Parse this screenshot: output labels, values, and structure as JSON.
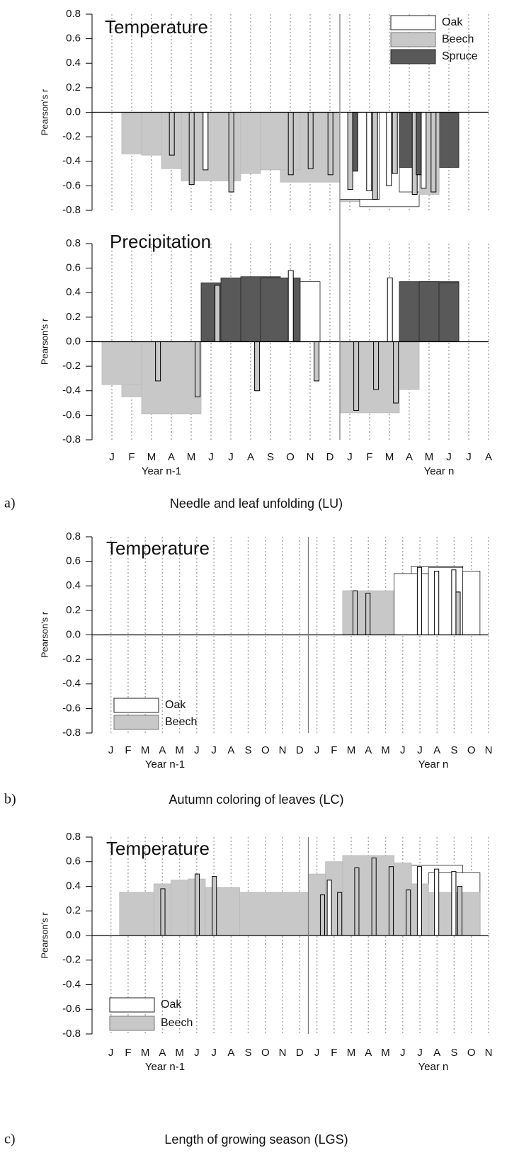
{
  "chart_data": [
    {
      "type": "bar",
      "title": "Temperature",
      "ylabel": "Pearson's r",
      "xlim": [
        0,
        20
      ],
      "ylim": [
        -0.8,
        0.8
      ],
      "yticks": [
        0.8,
        0.6,
        0.4,
        0.2,
        {
          "value": 0,
          "label": "0.0"
        },
        -0.2,
        -0.4,
        -0.6,
        -0.8
      ],
      "legend": "upper right",
      "series": [
        {
          "name": "Oak",
          "color": "#ffffff",
          "x_start": [
            5.6,
            12.5,
            13.5,
            15.5,
            13.85,
            14.85,
            16.6
          ],
          "x_end": [
            5.85,
            14.5,
            16.5,
            17.5,
            14.1,
            15.1,
            16.85
          ],
          "values": [
            -0.47,
            -0.71,
            -0.77,
            -0.65,
            -0.64,
            -0.6,
            -0.62
          ]
        },
        {
          "name": "Beech",
          "color": "#c8c8c8",
          "x_start": [
            1.5,
            2.5,
            3.5,
            4.5,
            7.5,
            8.5,
            9.5,
            12.5,
            16.5,
            3.9,
            4.9,
            6.9,
            9.9,
            10.9,
            11.9,
            12.9,
            14.15,
            15.15,
            16.15,
            17.1
          ],
          "x_end": [
            3.5,
            4.5,
            4.5,
            7.5,
            8.5,
            10.5,
            12.5,
            16.5,
            17.5,
            4.15,
            5.15,
            7.15,
            10.15,
            11.15,
            12.15,
            13.15,
            14.4,
            15.4,
            16.4,
            17.35
          ],
          "values": [
            -0.34,
            -0.35,
            -0.46,
            -0.56,
            -0.5,
            -0.47,
            -0.57,
            -0.73,
            -0.67,
            -0.35,
            -0.59,
            -0.65,
            -0.51,
            -0.46,
            -0.51,
            -0.63,
            -0.71,
            -0.5,
            -0.67,
            -0.65
          ]
        },
        {
          "name": "Spruce",
          "color": "#595959",
          "x_start": [
            15.5,
            16.5,
            13.15,
            16.35
          ],
          "x_end": [
            16.5,
            18.5,
            13.4,
            16.6
          ],
          "values": [
            -0.45,
            -0.45,
            -0.48,
            -0.51
          ]
        }
      ]
    },
    {
      "type": "bar",
      "title": "Precipitation",
      "ylabel": "Pearson's r",
      "xlim": [
        0,
        20
      ],
      "ylim": [
        -0.8,
        0.8
      ],
      "yticks": [
        0.8,
        0.6,
        0.4,
        0.2,
        {
          "value": 0,
          "label": "0.0"
        },
        -0.2,
        -0.4,
        -0.6,
        -0.8
      ],
      "xticks": [
        {
          "value": 1,
          "label": "J"
        },
        {
          "value": 2,
          "label": "F"
        },
        {
          "value": 3,
          "label": "M"
        },
        {
          "value": 4,
          "label": "A"
        },
        {
          "value": 5,
          "label": "M"
        },
        {
          "value": 6,
          "label": "J"
        },
        {
          "value": 7,
          "label": "J"
        },
        {
          "value": 8,
          "label": "A"
        },
        {
          "value": 9,
          "label": "S"
        },
        {
          "value": 10,
          "label": "O"
        },
        {
          "value": 11,
          "label": "N"
        },
        {
          "value": 12,
          "label": "D"
        },
        {
          "value": 13,
          "label": "J"
        },
        {
          "value": 14,
          "label": "F"
        },
        {
          "value": 15,
          "label": "M"
        },
        {
          "value": 16,
          "label": "A"
        },
        {
          "value": 17,
          "label": "M"
        },
        {
          "value": 18,
          "label": "J"
        },
        {
          "value": 19,
          "label": "J"
        },
        {
          "value": 20,
          "label": "A"
        }
      ],
      "x_annotations": [
        "Year n-1",
        "Year n"
      ],
      "panel_label": "a)",
      "caption": "Needle and leaf unfolding (LU)",
      "series": [
        {
          "name": "Oak",
          "color": "#ffffff",
          "x_start": [
            8.5,
            9.5,
            9.9,
            14.9
          ],
          "x_end": [
            10.5,
            11.5,
            10.15,
            15.15
          ],
          "values": [
            0.48,
            0.49,
            0.58,
            0.52
          ]
        },
        {
          "name": "Beech",
          "color": "#c8c8c8",
          "x_start": [
            0.5,
            1.5,
            2.5,
            12.5,
            15.5,
            3.2,
            5.2,
            6.2,
            8.2,
            11.2,
            13.2,
            14.2,
            15.2
          ],
          "x_end": [
            2.5,
            4.5,
            5.5,
            15.5,
            16.5,
            3.45,
            5.45,
            6.45,
            8.45,
            11.45,
            13.45,
            14.45,
            15.45
          ],
          "values": [
            -0.35,
            -0.45,
            -0.59,
            -0.58,
            -0.39,
            -0.32,
            -0.45,
            0.46,
            -0.4,
            -0.32,
            -0.56,
            -0.39,
            -0.5
          ]
        },
        {
          "name": "Spruce",
          "color": "#595959",
          "x_start": [
            5.5,
            6.5,
            7.5,
            8.5,
            15.5,
            16.5,
            17.5
          ],
          "x_end": [
            7.5,
            8.5,
            9.5,
            10.5,
            17.5,
            18.5,
            18.5
          ],
          "values": [
            0.48,
            0.52,
            0.53,
            0.52,
            0.49,
            0.49,
            0.48
          ]
        }
      ]
    },
    {
      "type": "bar",
      "title": "Temperature",
      "ylabel": "Pearson's r",
      "xlim": [
        -0.1,
        23
      ],
      "ylim": [
        -0.8,
        0.8
      ],
      "yticks": [
        0.8,
        0.6,
        0.4,
        0.2,
        {
          "value": 0,
          "label": "0.0"
        },
        -0.2,
        -0.4,
        -0.6,
        -0.8
      ],
      "legend": "lower left",
      "xticks": [
        {
          "value": 1,
          "label": "J"
        },
        {
          "value": 2,
          "label": "F"
        },
        {
          "value": 3,
          "label": "M"
        },
        {
          "value": 4,
          "label": "A"
        },
        {
          "value": 5,
          "label": "M"
        },
        {
          "value": 6,
          "label": "J"
        },
        {
          "value": 7,
          "label": "J"
        },
        {
          "value": 8,
          "label": "A"
        },
        {
          "value": 9,
          "label": "S"
        },
        {
          "value": 10,
          "label": "O"
        },
        {
          "value": 11,
          "label": "N"
        },
        {
          "value": 12,
          "label": "D"
        },
        {
          "value": 13,
          "label": "J"
        },
        {
          "value": 14,
          "label": "F"
        },
        {
          "value": 15,
          "label": "M"
        },
        {
          "value": 16,
          "label": "A"
        },
        {
          "value": 17,
          "label": "M"
        },
        {
          "value": 18,
          "label": "J"
        },
        {
          "value": 19,
          "label": "J"
        },
        {
          "value": 20,
          "label": "A"
        },
        {
          "value": 21,
          "label": "S"
        },
        {
          "value": 22,
          "label": "O"
        },
        {
          "value": 23,
          "label": "N"
        }
      ],
      "x_annotations": [
        "Year n-1",
        "Year n"
      ],
      "panel_label": "b)",
      "caption": "Autumn coloring of leaves (LC)",
      "series": [
        {
          "name": "Oak",
          "color": "#ffffff",
          "x_start": [
            17.5,
            18.5,
            19.5,
            21.5,
            18.85,
            19.85,
            20.85
          ],
          "x_end": [
            19.5,
            21.5,
            21.5,
            22.5,
            19.1,
            20.1,
            21.1
          ],
          "values": [
            0.5,
            0.56,
            0.55,
            0.52,
            0.55,
            0.52,
            0.53
          ]
        },
        {
          "name": "Beech",
          "color": "#c8c8c8",
          "x_start": [
            14.5,
            15.1,
            15.85,
            21.1
          ],
          "x_end": [
            17.5,
            15.35,
            16.1,
            21.35
          ],
          "values": [
            0.36,
            0.36,
            0.34,
            0.35
          ]
        }
      ]
    },
    {
      "type": "bar",
      "title": "Temperature",
      "ylabel": "Pearson's r",
      "xlim": [
        -0.1,
        23
      ],
      "ylim": [
        -0.8,
        0.8
      ],
      "yticks": [
        0.8,
        0.6,
        0.4,
        0.2,
        {
          "value": 0,
          "label": "0.0"
        },
        -0.2,
        -0.4,
        -0.6,
        -0.8
      ],
      "legend": "lower left",
      "xticks": [
        {
          "value": 1,
          "label": "J"
        },
        {
          "value": 2,
          "label": "F"
        },
        {
          "value": 3,
          "label": "M"
        },
        {
          "value": 4,
          "label": "A"
        },
        {
          "value": 5,
          "label": "M"
        },
        {
          "value": 6,
          "label": "J"
        },
        {
          "value": 7,
          "label": "J"
        },
        {
          "value": 8,
          "label": "A"
        },
        {
          "value": 9,
          "label": "S"
        },
        {
          "value": 10,
          "label": "O"
        },
        {
          "value": 11,
          "label": "N"
        },
        {
          "value": 12,
          "label": "D"
        },
        {
          "value": 13,
          "label": "J"
        },
        {
          "value": 14,
          "label": "F"
        },
        {
          "value": 15,
          "label": "M"
        },
        {
          "value": 16,
          "label": "A"
        },
        {
          "value": 17,
          "label": "M"
        },
        {
          "value": 18,
          "label": "J"
        },
        {
          "value": 19,
          "label": "J"
        },
        {
          "value": 20,
          "label": "A"
        },
        {
          "value": 21,
          "label": "S"
        },
        {
          "value": 22,
          "label": "O"
        },
        {
          "value": 23,
          "label": "N"
        }
      ],
      "x_annotations": [
        "Year n-1",
        "Year n"
      ],
      "panel_label": "c)",
      "caption": "Length of growing season (LGS)",
      "series": [
        {
          "name": "Oak",
          "color": "#ffffff",
          "x_start": [
            18.5,
            19.5,
            13.6,
            18.85,
            19.85,
            20.85
          ],
          "x_end": [
            21.5,
            22.5,
            13.85,
            19.1,
            20.1,
            21.1
          ],
          "values": [
            0.57,
            0.51,
            0.45,
            0.56,
            0.54,
            0.52
          ]
        },
        {
          "name": "Beech",
          "color": "#c8c8c8",
          "x_start": [
            1.5,
            3.5,
            4.5,
            5.5,
            6.5,
            8.5,
            12.5,
            13.5,
            14.5,
            17.5,
            18.5,
            19.5,
            3.9,
            5.9,
            6.9,
            13.2,
            14.2,
            15.2,
            16.2,
            17.2,
            18.2,
            21.2
          ],
          "x_end": [
            3.5,
            4.5,
            5.5,
            6.5,
            8.5,
            12.5,
            13.5,
            14.5,
            17.5,
            18.5,
            19.5,
            22.5,
            4.15,
            6.15,
            7.15,
            13.45,
            14.45,
            15.45,
            16.45,
            17.45,
            18.45,
            21.45
          ],
          "values": [
            0.35,
            0.42,
            0.45,
            0.46,
            0.39,
            0.35,
            0.5,
            0.6,
            0.65,
            0.59,
            0.42,
            0.35,
            0.38,
            0.5,
            0.48,
            0.33,
            0.35,
            0.55,
            0.63,
            0.56,
            0.37,
            0.4
          ]
        }
      ]
    }
  ]
}
